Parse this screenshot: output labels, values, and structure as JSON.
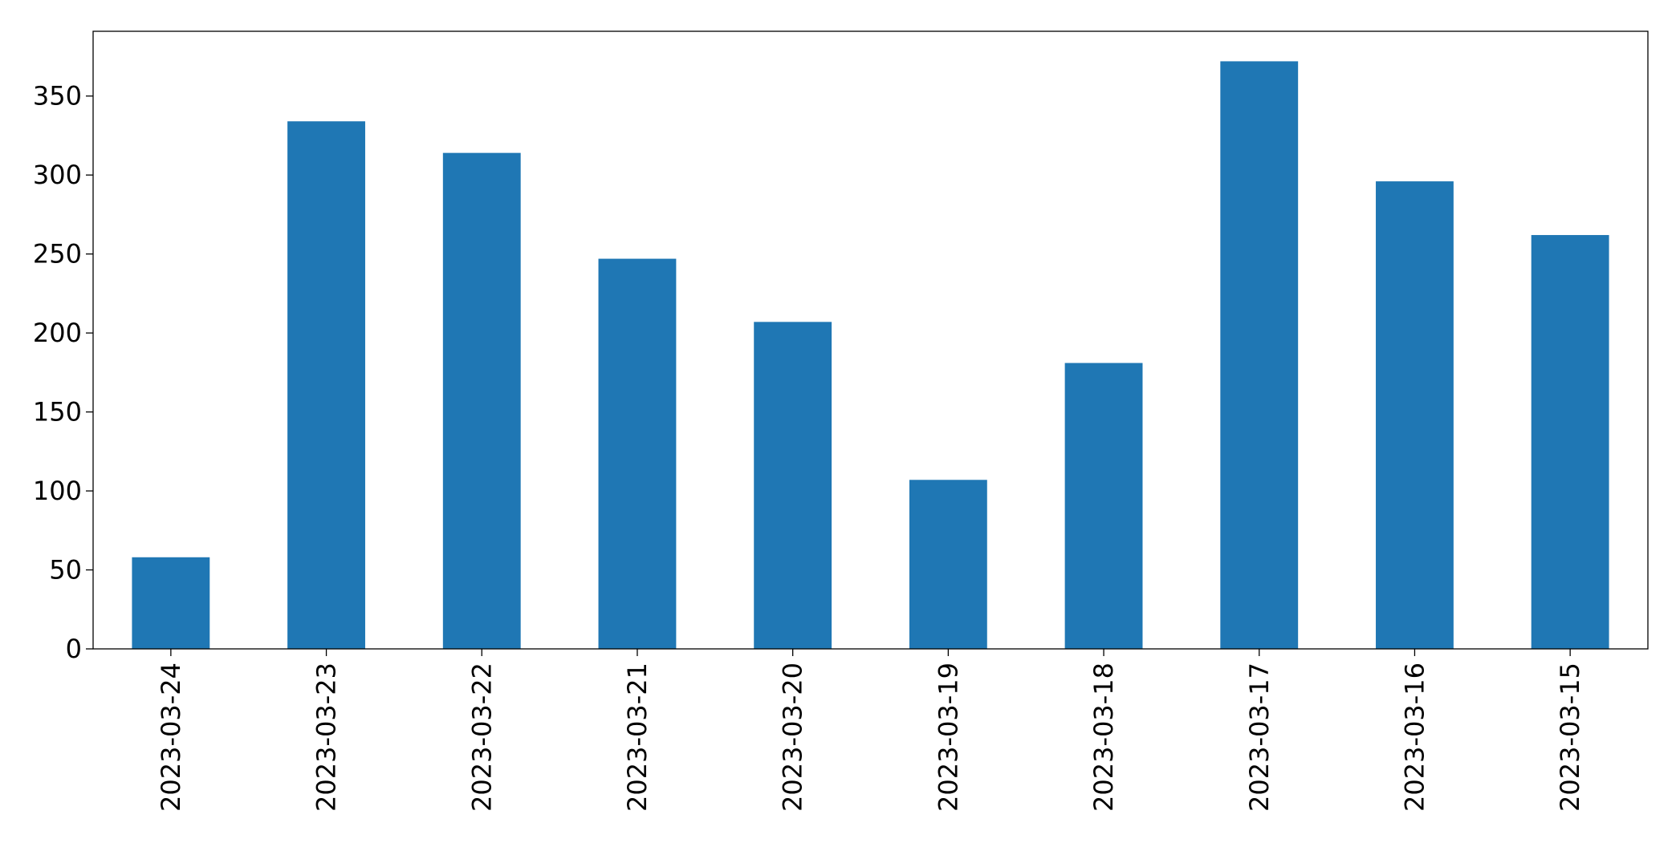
{
  "chart_data": {
    "type": "bar",
    "categories": [
      "2023-03-24",
      "2023-03-23",
      "2023-03-22",
      "2023-03-21",
      "2023-03-20",
      "2023-03-19",
      "2023-03-18",
      "2023-03-17",
      "2023-03-16",
      "2023-03-15"
    ],
    "values": [
      58,
      334,
      314,
      247,
      207,
      107,
      181,
      372,
      296,
      262
    ],
    "color": "#1f77b4",
    "ylim": [
      0,
      391
    ],
    "yticks": [
      0,
      50,
      100,
      150,
      200,
      250,
      300,
      350
    ],
    "grid": false
  }
}
